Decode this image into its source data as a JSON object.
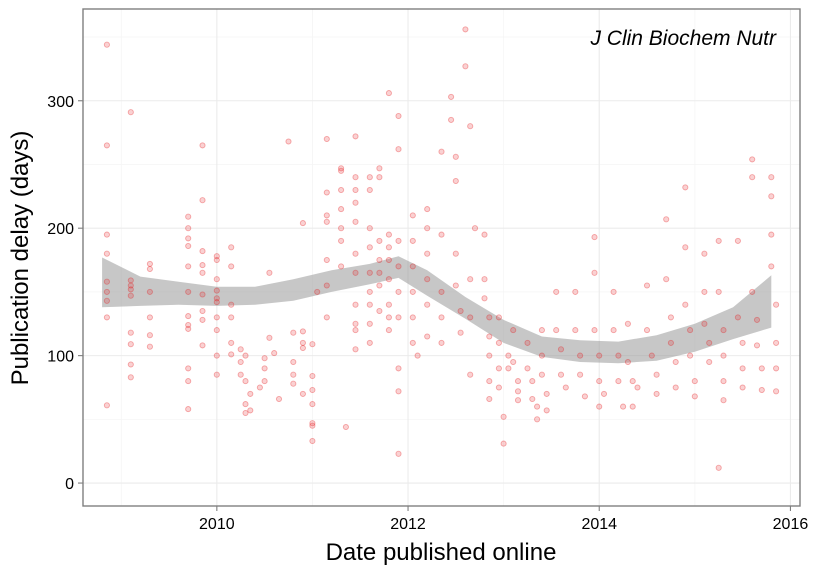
{
  "colors": {
    "points": "#e41a1c",
    "ribbon": "#999999",
    "grid": "#ebebeb",
    "border": "#7f7f7f"
  },
  "chart_data": {
    "type": "scatter",
    "title": "",
    "annotation": "J Clin Biochem Nutr",
    "xlabel": "Date published online",
    "ylabel": "Publication delay (days)",
    "xlim": [
      2008.6,
      2016.1
    ],
    "ylim": [
      -18,
      372
    ],
    "xticks": [
      2010,
      2012,
      2014,
      2016
    ],
    "yticks": [
      0,
      100,
      200,
      300
    ],
    "grid": true,
    "legend": "none",
    "point_alpha": 0.2,
    "smooth_band": {
      "x": [
        2008.8,
        2009.2,
        2009.6,
        2010.0,
        2010.4,
        2010.8,
        2011.2,
        2011.6,
        2011.9,
        2012.2,
        2012.6,
        2013.0,
        2013.4,
        2013.8,
        2014.2,
        2014.6,
        2015.0,
        2015.4,
        2015.8
      ],
      "lower": [
        138,
        139,
        140,
        139,
        140,
        143,
        150,
        156,
        161,
        147,
        129,
        110,
        99,
        95,
        94,
        96,
        103,
        113,
        122
      ],
      "upper": [
        177,
        162,
        158,
        154,
        154,
        160,
        167,
        172,
        178,
        167,
        146,
        128,
        115,
        112,
        111,
        116,
        125,
        138,
        163
      ]
    },
    "points": [
      [
        2008.85,
        344
      ],
      [
        2008.85,
        265
      ],
      [
        2008.85,
        195
      ],
      [
        2008.85,
        180
      ],
      [
        2008.85,
        158
      ],
      [
        2008.85,
        150
      ],
      [
        2008.85,
        143
      ],
      [
        2008.85,
        130
      ],
      [
        2008.85,
        61
      ],
      [
        2009.1,
        291
      ],
      [
        2009.1,
        159
      ],
      [
        2009.1,
        155
      ],
      [
        2009.1,
        152
      ],
      [
        2009.1,
        147
      ],
      [
        2009.1,
        118
      ],
      [
        2009.1,
        109
      ],
      [
        2009.1,
        93
      ],
      [
        2009.1,
        83
      ],
      [
        2009.3,
        172
      ],
      [
        2009.3,
        168
      ],
      [
        2009.3,
        150
      ],
      [
        2009.3,
        130
      ],
      [
        2009.3,
        116
      ],
      [
        2009.3,
        107
      ],
      [
        2009.7,
        209
      ],
      [
        2009.7,
        200
      ],
      [
        2009.7,
        192
      ],
      [
        2009.7,
        186
      ],
      [
        2009.7,
        170
      ],
      [
        2009.7,
        150
      ],
      [
        2009.7,
        131
      ],
      [
        2009.7,
        124
      ],
      [
        2009.7,
        121
      ],
      [
        2009.7,
        90
      ],
      [
        2009.7,
        80
      ],
      [
        2009.7,
        58
      ],
      [
        2009.85,
        265
      ],
      [
        2009.85,
        222
      ],
      [
        2009.85,
        182
      ],
      [
        2009.85,
        171
      ],
      [
        2009.85,
        165
      ],
      [
        2009.85,
        148
      ],
      [
        2009.85,
        135
      ],
      [
        2009.85,
        128
      ],
      [
        2009.85,
        108
      ],
      [
        2010.0,
        178
      ],
      [
        2010.0,
        175
      ],
      [
        2010.0,
        160
      ],
      [
        2010.0,
        151
      ],
      [
        2010.0,
        145
      ],
      [
        2010.0,
        142
      ],
      [
        2010.0,
        130
      ],
      [
        2010.0,
        120
      ],
      [
        2010.0,
        100
      ],
      [
        2010.0,
        85
      ],
      [
        2010.15,
        185
      ],
      [
        2010.15,
        170
      ],
      [
        2010.15,
        140
      ],
      [
        2010.15,
        130
      ],
      [
        2010.15,
        110
      ],
      [
        2010.15,
        101
      ],
      [
        2010.25,
        105
      ],
      [
        2010.25,
        95
      ],
      [
        2010.25,
        85
      ],
      [
        2010.3,
        100
      ],
      [
        2010.3,
        80
      ],
      [
        2010.3,
        62
      ],
      [
        2010.3,
        55
      ],
      [
        2010.35,
        70
      ],
      [
        2010.35,
        57
      ],
      [
        2010.45,
        75
      ],
      [
        2010.5,
        98
      ],
      [
        2010.5,
        90
      ],
      [
        2010.5,
        80
      ],
      [
        2010.55,
        165
      ],
      [
        2010.55,
        114
      ],
      [
        2010.6,
        102
      ],
      [
        2010.65,
        66
      ],
      [
        2010.75,
        268
      ],
      [
        2010.8,
        118
      ],
      [
        2010.8,
        95
      ],
      [
        2010.8,
        85
      ],
      [
        2010.8,
        78
      ],
      [
        2010.9,
        204
      ],
      [
        2010.9,
        119
      ],
      [
        2010.9,
        110
      ],
      [
        2010.9,
        106
      ],
      [
        2010.9,
        70
      ],
      [
        2011.0,
        109
      ],
      [
        2011.0,
        84
      ],
      [
        2011.0,
        73
      ],
      [
        2011.0,
        62
      ],
      [
        2011.0,
        47
      ],
      [
        2011.0,
        45
      ],
      [
        2011.0,
        33
      ],
      [
        2011.05,
        150
      ],
      [
        2011.15,
        270
      ],
      [
        2011.15,
        228
      ],
      [
        2011.15,
        210
      ],
      [
        2011.15,
        205
      ],
      [
        2011.15,
        175
      ],
      [
        2011.15,
        155
      ],
      [
        2011.15,
        130
      ],
      [
        2011.3,
        247
      ],
      [
        2011.3,
        245
      ],
      [
        2011.3,
        230
      ],
      [
        2011.3,
        215
      ],
      [
        2011.3,
        200
      ],
      [
        2011.3,
        190
      ],
      [
        2011.3,
        170
      ],
      [
        2011.35,
        44
      ],
      [
        2011.45,
        272
      ],
      [
        2011.45,
        240
      ],
      [
        2011.45,
        230
      ],
      [
        2011.45,
        220
      ],
      [
        2011.45,
        205
      ],
      [
        2011.45,
        180
      ],
      [
        2011.45,
        165
      ],
      [
        2011.45,
        140
      ],
      [
        2011.45,
        125
      ],
      [
        2011.45,
        120
      ],
      [
        2011.45,
        105
      ],
      [
        2011.6,
        240
      ],
      [
        2011.6,
        230
      ],
      [
        2011.6,
        200
      ],
      [
        2011.6,
        185
      ],
      [
        2011.6,
        165
      ],
      [
        2011.6,
        150
      ],
      [
        2011.6,
        140
      ],
      [
        2011.6,
        125
      ],
      [
        2011.6,
        110
      ],
      [
        2011.7,
        247
      ],
      [
        2011.7,
        240
      ],
      [
        2011.7,
        190
      ],
      [
        2011.7,
        175
      ],
      [
        2011.7,
        165
      ],
      [
        2011.7,
        155
      ],
      [
        2011.7,
        135
      ],
      [
        2011.8,
        306
      ],
      [
        2011.8,
        195
      ],
      [
        2011.8,
        185
      ],
      [
        2011.8,
        175
      ],
      [
        2011.8,
        160
      ],
      [
        2011.8,
        140
      ],
      [
        2011.8,
        130
      ],
      [
        2011.8,
        120
      ],
      [
        2011.9,
        288
      ],
      [
        2011.9,
        262
      ],
      [
        2011.9,
        190
      ],
      [
        2011.9,
        170
      ],
      [
        2011.9,
        150
      ],
      [
        2011.9,
        130
      ],
      [
        2011.9,
        90
      ],
      [
        2011.9,
        72
      ],
      [
        2011.9,
        23
      ],
      [
        2012.05,
        210
      ],
      [
        2012.05,
        190
      ],
      [
        2012.05,
        170
      ],
      [
        2012.05,
        150
      ],
      [
        2012.05,
        130
      ],
      [
        2012.05,
        110
      ],
      [
        2012.1,
        100
      ],
      [
        2012.2,
        215
      ],
      [
        2012.2,
        200
      ],
      [
        2012.2,
        180
      ],
      [
        2012.2,
        160
      ],
      [
        2012.2,
        140
      ],
      [
        2012.2,
        115
      ],
      [
        2012.35,
        260
      ],
      [
        2012.35,
        195
      ],
      [
        2012.35,
        150
      ],
      [
        2012.35,
        130
      ],
      [
        2012.35,
        110
      ],
      [
        2012.45,
        303
      ],
      [
        2012.45,
        285
      ],
      [
        2012.5,
        256
      ],
      [
        2012.5,
        237
      ],
      [
        2012.5,
        180
      ],
      [
        2012.5,
        155
      ],
      [
        2012.55,
        135
      ],
      [
        2012.55,
        118
      ],
      [
        2012.6,
        356
      ],
      [
        2012.6,
        327
      ],
      [
        2012.65,
        280
      ],
      [
        2012.65,
        160
      ],
      [
        2012.65,
        130
      ],
      [
        2012.65,
        85
      ],
      [
        2012.7,
        200
      ],
      [
        2012.8,
        195
      ],
      [
        2012.8,
        160
      ],
      [
        2012.8,
        145
      ],
      [
        2012.85,
        130
      ],
      [
        2012.85,
        115
      ],
      [
        2012.85,
        100
      ],
      [
        2012.85,
        80
      ],
      [
        2012.85,
        66
      ],
      [
        2012.95,
        130
      ],
      [
        2012.95,
        110
      ],
      [
        2012.95,
        90
      ],
      [
        2012.95,
        75
      ],
      [
        2013.0,
        52
      ],
      [
        2013.0,
        31
      ],
      [
        2013.05,
        100
      ],
      [
        2013.05,
        90
      ],
      [
        2013.1,
        120
      ],
      [
        2013.1,
        95
      ],
      [
        2013.15,
        80
      ],
      [
        2013.15,
        72
      ],
      [
        2013.15,
        65
      ],
      [
        2013.25,
        110
      ],
      [
        2013.25,
        90
      ],
      [
        2013.3,
        80
      ],
      [
        2013.3,
        66
      ],
      [
        2013.35,
        50
      ],
      [
        2013.35,
        60
      ],
      [
        2013.4,
        120
      ],
      [
        2013.4,
        100
      ],
      [
        2013.4,
        85
      ],
      [
        2013.45,
        70
      ],
      [
        2013.45,
        57
      ],
      [
        2013.55,
        150
      ],
      [
        2013.55,
        120
      ],
      [
        2013.6,
        105
      ],
      [
        2013.6,
        85
      ],
      [
        2013.65,
        75
      ],
      [
        2013.75,
        150
      ],
      [
        2013.75,
        120
      ],
      [
        2013.8,
        100
      ],
      [
        2013.8,
        85
      ],
      [
        2013.85,
        68
      ],
      [
        2013.95,
        193
      ],
      [
        2013.95,
        165
      ],
      [
        2013.95,
        120
      ],
      [
        2014.0,
        100
      ],
      [
        2014.0,
        80
      ],
      [
        2014.0,
        60
      ],
      [
        2014.05,
        70
      ],
      [
        2014.15,
        150
      ],
      [
        2014.15,
        120
      ],
      [
        2014.2,
        100
      ],
      [
        2014.2,
        80
      ],
      [
        2014.25,
        60
      ],
      [
        2014.3,
        125
      ],
      [
        2014.3,
        95
      ],
      [
        2014.35,
        80
      ],
      [
        2014.35,
        60
      ],
      [
        2014.4,
        75
      ],
      [
        2014.5,
        155
      ],
      [
        2014.5,
        120
      ],
      [
        2014.55,
        100
      ],
      [
        2014.6,
        85
      ],
      [
        2014.6,
        70
      ],
      [
        2014.7,
        207
      ],
      [
        2014.7,
        160
      ],
      [
        2014.75,
        130
      ],
      [
        2014.75,
        110
      ],
      [
        2014.8,
        95
      ],
      [
        2014.8,
        75
      ],
      [
        2014.9,
        232
      ],
      [
        2014.9,
        185
      ],
      [
        2014.9,
        140
      ],
      [
        2014.95,
        120
      ],
      [
        2014.95,
        100
      ],
      [
        2015.0,
        80
      ],
      [
        2015.0,
        68
      ],
      [
        2015.1,
        180
      ],
      [
        2015.1,
        150
      ],
      [
        2015.1,
        125
      ],
      [
        2015.15,
        110
      ],
      [
        2015.15,
        95
      ],
      [
        2015.25,
        190
      ],
      [
        2015.25,
        150
      ],
      [
        2015.3,
        120
      ],
      [
        2015.3,
        100
      ],
      [
        2015.3,
        80
      ],
      [
        2015.3,
        65
      ],
      [
        2015.25,
        12
      ],
      [
        2015.45,
        190
      ],
      [
        2015.45,
        130
      ],
      [
        2015.5,
        110
      ],
      [
        2015.5,
        90
      ],
      [
        2015.5,
        75
      ],
      [
        2015.6,
        254
      ],
      [
        2015.6,
        240
      ],
      [
        2015.6,
        150
      ],
      [
        2015.65,
        128
      ],
      [
        2015.65,
        108
      ],
      [
        2015.7,
        90
      ],
      [
        2015.7,
        73
      ],
      [
        2015.8,
        240
      ],
      [
        2015.8,
        225
      ],
      [
        2015.8,
        195
      ],
      [
        2015.8,
        170
      ],
      [
        2015.85,
        140
      ],
      [
        2015.85,
        110
      ],
      [
        2015.85,
        90
      ],
      [
        2015.85,
        72
      ]
    ]
  }
}
